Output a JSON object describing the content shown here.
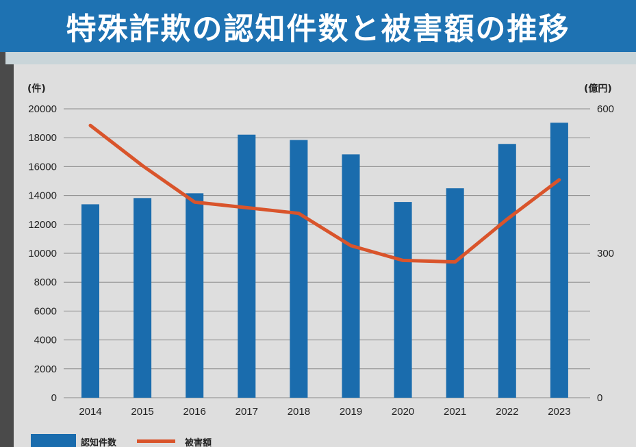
{
  "chart_data": {
    "type": "bar+line",
    "title": "特殊詐欺の認知件数と被害額の推移",
    "categories": [
      "2014",
      "2015",
      "2016",
      "2017",
      "2018",
      "2019",
      "2020",
      "2021",
      "2022",
      "2023"
    ],
    "series": [
      {
        "name": "認知件数",
        "type": "bar",
        "axis": "left",
        "values": [
          13392,
          13824,
          14154,
          18212,
          17844,
          16851,
          13550,
          14498,
          17570,
          19038
        ]
      },
      {
        "name": "被害額",
        "type": "line",
        "axis": "right",
        "values": [
          565.5,
          482,
          406.3,
          394.7,
          382.9,
          315.8,
          285.2,
          282,
          370.8,
          452.6
        ]
      }
    ],
    "left_axis": {
      "unit": "(件)",
      "ylim": [
        0,
        20000
      ],
      "ticks": [
        0,
        2000,
        4000,
        6000,
        8000,
        10000,
        12000,
        14000,
        16000,
        18000,
        20000
      ]
    },
    "right_axis": {
      "unit": "(億円)",
      "ylim": [
        0,
        600
      ],
      "ticks": [
        0,
        300,
        600
      ]
    },
    "grid": true,
    "legend_position": "bottom-left"
  },
  "colors": {
    "bar": "#1a6cad",
    "line": "#d9542b",
    "title_background": "#1e72b2",
    "panel_background": "#dedede"
  }
}
